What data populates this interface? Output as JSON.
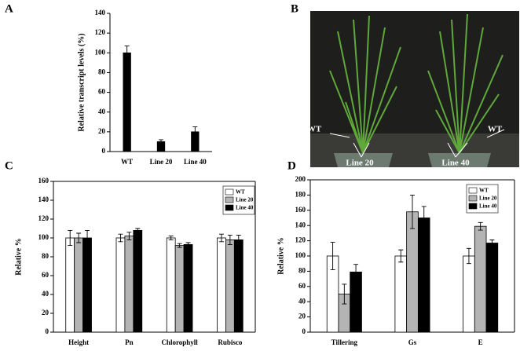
{
  "chart_data": [
    {
      "type": "bar",
      "panel": "A",
      "ylabel": "Relative transcript levels (%)",
      "categories": [
        "WT",
        "Line 20",
        "Line 40"
      ],
      "values": [
        100,
        10,
        20
      ],
      "errors": [
        7,
        2,
        5
      ],
      "color": "#000000",
      "ylim": [
        0,
        140
      ],
      "yticks": [
        0,
        20,
        40,
        60,
        80,
        100,
        120,
        140
      ]
    },
    {
      "type": "image",
      "panel": "B",
      "annotations": [
        "WT",
        "WT",
        "Line 20",
        "Line 40"
      ]
    },
    {
      "type": "bar",
      "panel": "C",
      "ylabel": "Relative  %",
      "categories": [
        "Height",
        "Pn",
        "Chlorophyll",
        "Rubisco"
      ],
      "series": [
        {
          "name": "WT",
          "color": "#ffffff",
          "values": [
            100,
            100,
            100,
            100
          ],
          "errors": [
            8,
            4,
            2,
            4
          ]
        },
        {
          "name": "Line 20",
          "color": "#b4b4b4",
          "values": [
            100,
            102,
            92,
            98
          ],
          "errors": [
            5,
            4,
            2,
            5
          ]
        },
        {
          "name": "Line 40",
          "color": "#000000",
          "values": [
            100,
            108,
            93,
            98
          ],
          "errors": [
            8,
            2,
            2,
            5
          ]
        }
      ],
      "ylim": [
        0,
        160
      ],
      "yticks": [
        0,
        20,
        40,
        60,
        80,
        100,
        120,
        140,
        160
      ]
    },
    {
      "type": "bar",
      "panel": "D",
      "ylabel": "Relative  %",
      "categories": [
        "Tillering",
        "Gs",
        "E"
      ],
      "series": [
        {
          "name": "WT",
          "color": "#ffffff",
          "values": [
            100,
            100,
            100
          ],
          "errors": [
            18,
            8,
            10
          ]
        },
        {
          "name": "Line 20",
          "color": "#b4b4b4",
          "values": [
            50,
            158,
            139
          ],
          "errors": [
            13,
            22,
            5
          ]
        },
        {
          "name": "Line 40",
          "color": "#000000",
          "values": [
            79,
            150,
            117
          ],
          "errors": [
            10,
            15,
            4
          ]
        }
      ],
      "ylim": [
        0,
        200
      ],
      "yticks": [
        0,
        20,
        40,
        60,
        80,
        100,
        120,
        140,
        160,
        180,
        200
      ]
    }
  ]
}
